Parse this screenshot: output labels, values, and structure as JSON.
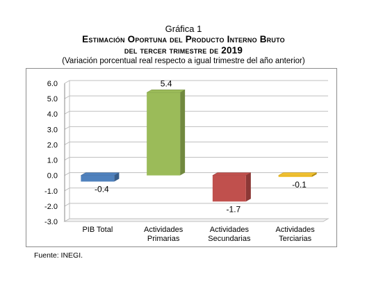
{
  "header": {
    "label": "Gráfica 1",
    "title_line1": "Estimación Oportuna del Producto Interno Bruto",
    "title_line2": "del tercer trimestre de 2019",
    "subtitle": "(Variación porcentual real respecto a igual trimestre del año anterior)"
  },
  "footer": {
    "source": "Fuente: INEGI."
  },
  "chart_data": {
    "type": "bar",
    "categories": [
      [
        "PIB Total"
      ],
      [
        "Actividades",
        "Primarias"
      ],
      [
        "Actividades",
        "Secundarias"
      ],
      [
        "Actividades",
        "Terciarias"
      ]
    ],
    "values": [
      -0.4,
      5.4,
      -1.7,
      -0.1
    ],
    "value_labels": [
      "-0.4",
      "5.4",
      "-1.7",
      "-0.1"
    ],
    "colors": [
      "#4f81bd",
      "#9bbb59",
      "#c0504d",
      "#f0c030"
    ],
    "side_colors": [
      "#385d8a",
      "#71893f",
      "#8c3836",
      "#b58c10"
    ],
    "yticks": [
      "6.0",
      "5.0",
      "4.0",
      "3.0",
      "2.0",
      "1.0",
      "0.0",
      "-1.0",
      "-2.0",
      "-3.0"
    ],
    "ylim": [
      -3,
      6
    ],
    "grid": true,
    "legend": "none"
  }
}
